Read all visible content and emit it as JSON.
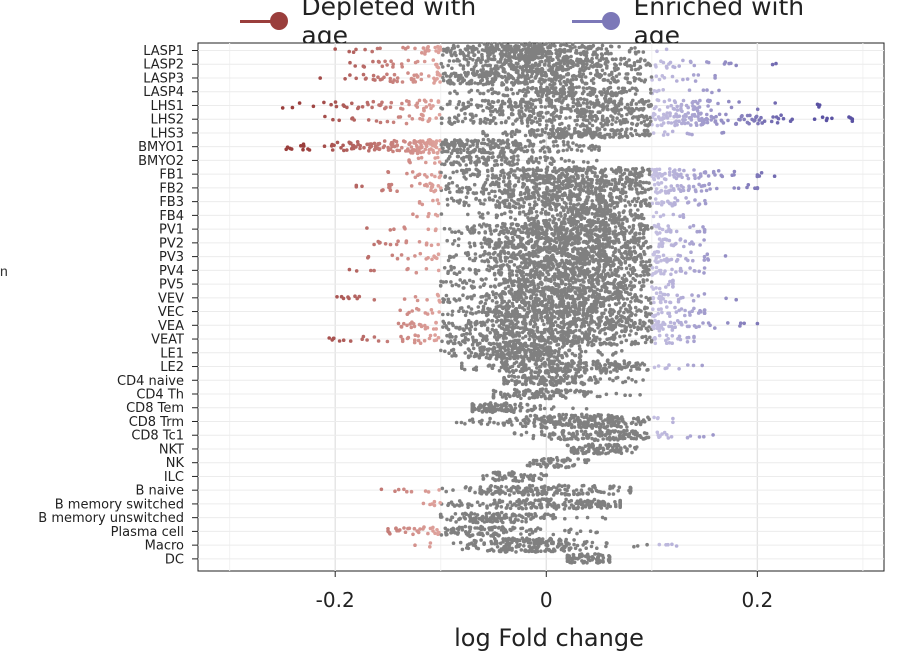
{
  "legend": {
    "depleted": {
      "label": "Depleted with age",
      "color": "#9a3e3c"
    },
    "enriched": {
      "label": "Enriched with age",
      "color": "#7c78b8"
    }
  },
  "edge_label": "n",
  "chart_data": {
    "type": "scatter",
    "subtype": "beeswarm",
    "xlabel": "log Fold change",
    "ylabel": "",
    "xlim": [
      -0.33,
      0.32
    ],
    "x_ticks": [
      -0.2,
      0,
      0.2
    ],
    "x_tick_labels": [
      "-0.2",
      "0",
      "0.2"
    ],
    "grid": true,
    "legend_position": "top",
    "colors": {
      "depleted": "#9a3e3c",
      "enriched": "#5a52a3",
      "neutral": "#808080",
      "depleted_light": "#e0a49e",
      "enriched_light": "#c6c1e2"
    },
    "categories": [
      "LASP1",
      "LASP2",
      "LASP3",
      "LASP4",
      "LHS1",
      "LHS2",
      "LHS3",
      "BMYO1",
      "BMYO2",
      "FB1",
      "FB2",
      "FB3",
      "FB4",
      "PV1",
      "PV2",
      "PV3",
      "PV4",
      "PV5",
      "VEV",
      "VEC",
      "VEA",
      "VEAT",
      "LE1",
      "LE2",
      "CD4 naive",
      "CD4 Th",
      "CD8 Tem",
      "CD8 Trm",
      "CD8 Tc1",
      "NKT",
      "NK",
      "ILC",
      "B naive",
      "B memory switched",
      "B memory unswitched",
      "Plasma cell",
      "Macro",
      "DC"
    ],
    "distributions": [
      {
        "center": -0.02,
        "spread": 0.045,
        "min": -0.2,
        "max": 0.12,
        "density": 1.0
      },
      {
        "center": 0.0,
        "spread": 0.06,
        "min": -0.19,
        "max": 0.23,
        "density": 1.0
      },
      {
        "center": -0.02,
        "spread": 0.065,
        "min": -0.24,
        "max": 0.16,
        "density": 1.0
      },
      {
        "center": 0.02,
        "spread": 0.04,
        "min": -0.14,
        "max": 0.18,
        "density": 0.5
      },
      {
        "center": 0.02,
        "spread": 0.09,
        "min": -0.25,
        "max": 0.27,
        "density": 1.0
      },
      {
        "center": 0.04,
        "spread": 0.09,
        "min": -0.22,
        "max": 0.29,
        "density": 1.0
      },
      {
        "center": 0.03,
        "spread": 0.04,
        "min": -0.06,
        "max": 0.17,
        "density": 0.5
      },
      {
        "center": -0.08,
        "spread": 0.06,
        "min": -0.25,
        "max": 0.05,
        "density": 1.0
      },
      {
        "center": -0.05,
        "spread": 0.035,
        "min": -0.13,
        "max": 0.06,
        "density": 0.3
      },
      {
        "center": 0.03,
        "spread": 0.06,
        "min": -0.15,
        "max": 0.22,
        "density": 1.0
      },
      {
        "center": 0.02,
        "spread": 0.07,
        "min": -0.18,
        "max": 0.2,
        "density": 1.0
      },
      {
        "center": 0.02,
        "spread": 0.05,
        "min": -0.12,
        "max": 0.16,
        "density": 0.8
      },
      {
        "center": 0.03,
        "spread": 0.04,
        "min": -0.13,
        "max": 0.13,
        "density": 0.6
      },
      {
        "center": 0.02,
        "spread": 0.05,
        "min": -0.18,
        "max": 0.15,
        "density": 1.0
      },
      {
        "center": 0.02,
        "spread": 0.05,
        "min": -0.17,
        "max": 0.16,
        "density": 1.0
      },
      {
        "center": 0.03,
        "spread": 0.055,
        "min": -0.17,
        "max": 0.2,
        "density": 1.0
      },
      {
        "center": 0.02,
        "spread": 0.05,
        "min": -0.2,
        "max": 0.15,
        "density": 0.9
      },
      {
        "center": 0.02,
        "spread": 0.05,
        "min": -0.1,
        "max": 0.12,
        "density": 0.8
      },
      {
        "center": 0.02,
        "spread": 0.06,
        "min": -0.2,
        "max": 0.18,
        "density": 1.0
      },
      {
        "center": 0.02,
        "spread": 0.055,
        "min": -0.14,
        "max": 0.15,
        "density": 1.0
      },
      {
        "center": 0.02,
        "spread": 0.06,
        "min": -0.14,
        "max": 0.2,
        "density": 1.0
      },
      {
        "center": 0.0,
        "spread": 0.06,
        "min": -0.21,
        "max": 0.14,
        "density": 1.0
      },
      {
        "center": -0.02,
        "spread": 0.03,
        "min": -0.1,
        "max": 0.08,
        "density": 0.7
      },
      {
        "center": 0.02,
        "spread": 0.04,
        "min": -0.08,
        "max": 0.15,
        "density": 0.7
      },
      {
        "center": 0.0,
        "spread": 0.03,
        "min": -0.04,
        "max": 0.1,
        "density": 0.35
      },
      {
        "center": -0.01,
        "spread": 0.025,
        "min": -0.05,
        "max": 0.11,
        "density": 0.25
      },
      {
        "center": -0.05,
        "spread": 0.02,
        "min": -0.07,
        "max": 0.07,
        "density": 0.3
      },
      {
        "center": 0.03,
        "spread": 0.035,
        "min": -0.1,
        "max": 0.12,
        "density": 0.7
      },
      {
        "center": 0.05,
        "spread": 0.035,
        "min": -0.03,
        "max": 0.16,
        "density": 0.4
      },
      {
        "center": 0.05,
        "spread": 0.02,
        "min": 0.02,
        "max": 0.09,
        "density": 0.25
      },
      {
        "center": 0.01,
        "spread": 0.015,
        "min": -0.03,
        "max": 0.04,
        "density": 0.12
      },
      {
        "center": -0.03,
        "spread": 0.015,
        "min": -0.06,
        "max": 0.0,
        "density": 0.12
      },
      {
        "center": 0.0,
        "spread": 0.05,
        "min": -0.18,
        "max": 0.08,
        "density": 0.45
      },
      {
        "center": 0.0,
        "spread": 0.045,
        "min": -0.14,
        "max": 0.07,
        "density": 0.5
      },
      {
        "center": -0.05,
        "spread": 0.03,
        "min": -0.1,
        "max": 0.06,
        "density": 0.35
      },
      {
        "center": -0.07,
        "spread": 0.04,
        "min": -0.15,
        "max": 0.05,
        "density": 0.35
      },
      {
        "center": -0.02,
        "spread": 0.03,
        "min": -0.14,
        "max": 0.13,
        "density": 0.6
      },
      {
        "center": 0.04,
        "spread": 0.015,
        "min": 0.02,
        "max": 0.06,
        "density": 0.15
      }
    ],
    "significance_threshold": 0.1
  }
}
